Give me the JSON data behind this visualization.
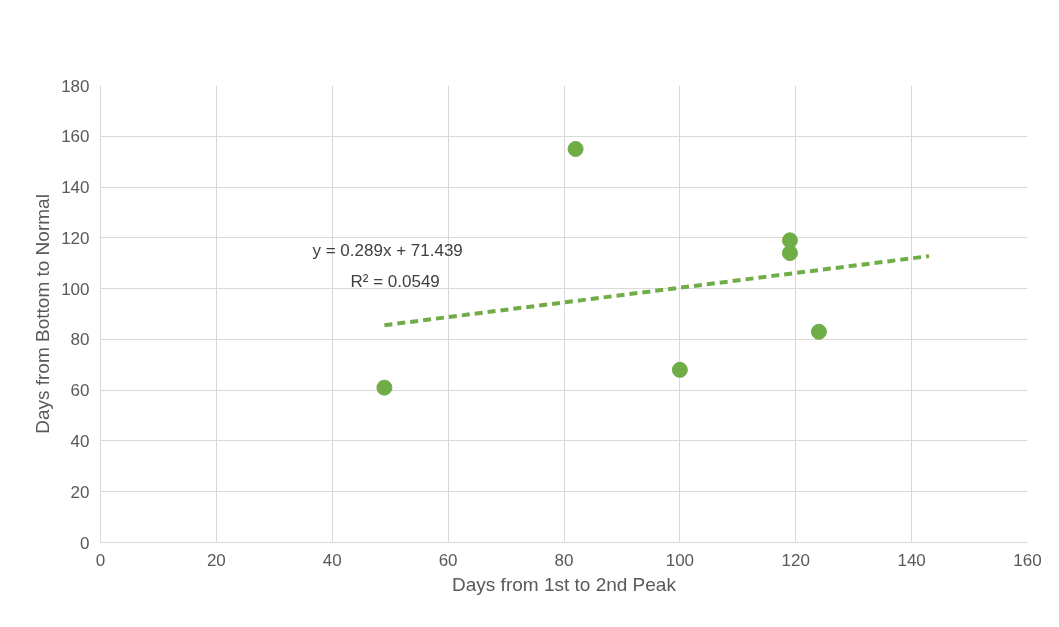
{
  "chart_data": {
    "type": "scatter",
    "xlabel": "Days from 1st to 2nd Peak",
    "ylabel": "Days from Bottom to Normal",
    "xlim": [
      0,
      160
    ],
    "xticks": [
      0,
      20,
      40,
      60,
      80,
      100,
      120,
      140,
      160
    ],
    "ylim": [
      0,
      180
    ],
    "yticks": [
      0,
      20,
      40,
      60,
      80,
      100,
      120,
      140,
      160,
      180
    ],
    "grid": true,
    "marker": "circle",
    "series": [
      {
        "color": "#70ad47",
        "x": [
          49,
          82,
          100,
          119,
          119,
          124
        ],
        "values": [
          61,
          155,
          68,
          119,
          114,
          83
        ]
      },
      {
        "type": "line",
        "color": "#70ad47",
        "line_style": "dashed",
        "marker": "none",
        "x": [
          49,
          143
        ],
        "values": [
          85.6,
          112.8
        ]
      }
    ],
    "annotations": [
      "y = 0.289x + 71.439",
      "R² = 0.0549"
    ]
  }
}
